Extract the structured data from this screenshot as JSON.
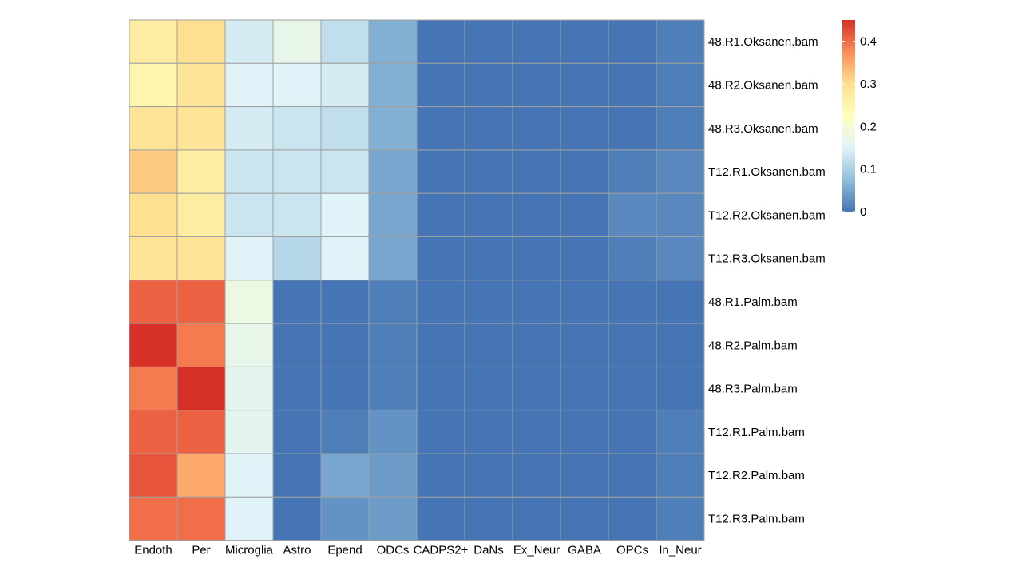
{
  "chart_data": {
    "type": "heatmap",
    "title": "",
    "xlabel": "",
    "ylabel": "",
    "columns": [
      "Endoth",
      "Per",
      "Microglia",
      "Astro",
      "Epend",
      "ODCs",
      "CADPS2+",
      "DaNs",
      "Ex_Neur",
      "GABA",
      "OPCs",
      "In_Neur"
    ],
    "rows": [
      "48.R1.Oksanen.bam",
      "48.R2.Oksanen.bam",
      "48.R3.Oksanen.bam",
      "T12.R1.Oksanen.bam",
      "T12.R2.Oksanen.bam",
      "T12.R3.Oksanen.bam",
      "48.R1.Palm.bam",
      "48.R2.Palm.bam",
      "48.R3.Palm.bam",
      "T12.R1.Palm.bam",
      "T12.R2.Palm.bam",
      "T12.R3.Palm.bam"
    ],
    "values": [
      [
        0.27,
        0.3,
        0.14,
        0.17,
        0.12,
        0.06,
        0.0,
        0.0,
        0.0,
        0.0,
        0.0,
        0.01
      ],
      [
        0.25,
        0.29,
        0.15,
        0.15,
        0.14,
        0.06,
        0.0,
        0.0,
        0.0,
        0.0,
        0.0,
        0.01
      ],
      [
        0.29,
        0.29,
        0.14,
        0.13,
        0.12,
        0.06,
        0.0,
        0.0,
        0.0,
        0.0,
        0.0,
        0.01
      ],
      [
        0.32,
        0.27,
        0.13,
        0.13,
        0.13,
        0.05,
        0.0,
        0.0,
        0.0,
        0.0,
        0.01,
        0.02
      ],
      [
        0.3,
        0.27,
        0.13,
        0.13,
        0.15,
        0.05,
        0.0,
        0.0,
        0.0,
        0.0,
        0.02,
        0.02
      ],
      [
        0.29,
        0.29,
        0.15,
        0.11,
        0.15,
        0.05,
        0.0,
        0.0,
        0.0,
        0.0,
        0.01,
        0.02
      ],
      [
        0.41,
        0.41,
        0.18,
        0.0,
        0.0,
        0.01,
        0.0,
        0.0,
        0.0,
        0.0,
        0.0,
        0.0
      ],
      [
        0.45,
        0.39,
        0.17,
        0.0,
        0.0,
        0.01,
        0.0,
        0.0,
        0.0,
        0.0,
        0.0,
        0.0
      ],
      [
        0.39,
        0.45,
        0.16,
        0.0,
        0.0,
        0.01,
        0.0,
        0.0,
        0.0,
        0.0,
        0.0,
        0.0
      ],
      [
        0.41,
        0.41,
        0.16,
        0.0,
        0.01,
        0.03,
        0.0,
        0.0,
        0.0,
        0.0,
        0.0,
        0.01
      ],
      [
        0.42,
        0.35,
        0.15,
        0.0,
        0.05,
        0.04,
        0.0,
        0.0,
        0.0,
        0.0,
        0.0,
        0.01
      ],
      [
        0.4,
        0.4,
        0.15,
        0.0,
        0.03,
        0.04,
        0.0,
        0.0,
        0.0,
        0.0,
        0.0,
        0.01
      ]
    ],
    "color_scale": {
      "min": 0,
      "max": 0.45,
      "stops": [
        "#4575b4",
        "#91bfdb",
        "#e0f3f8",
        "#ffffbf",
        "#fee090",
        "#fc8d59",
        "#d73027"
      ]
    },
    "legend": {
      "placement": "right",
      "ticks": [
        0,
        0.1,
        0.2,
        0.3,
        0.4
      ],
      "tick_labels": [
        "0",
        "0.1",
        "0.2",
        "0.3",
        "0.4"
      ]
    },
    "grid_color": "#a0a0a0"
  }
}
